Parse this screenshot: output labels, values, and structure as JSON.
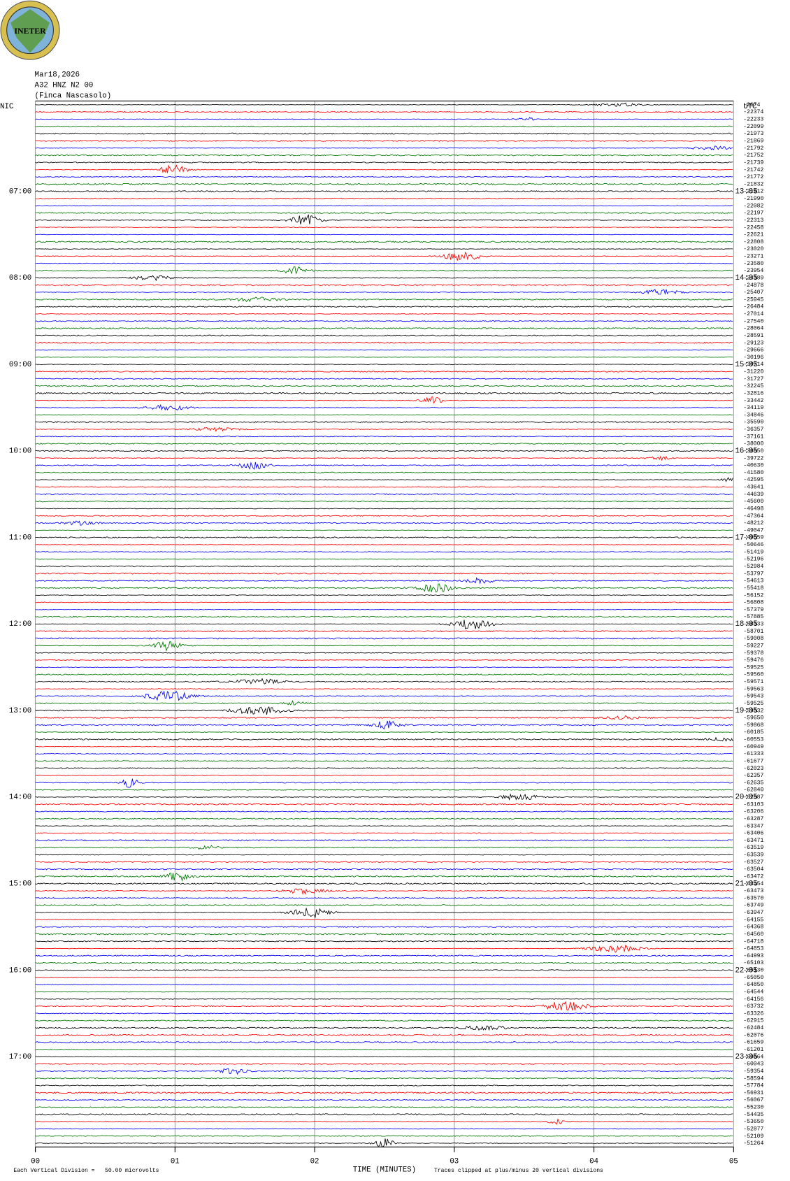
{
  "header": {
    "logo_text": "INETER",
    "date": "Mar18,2026",
    "station": "A32 HNZ N2 00",
    "location": "(Finca Nascasolo)"
  },
  "left_timezone": "NIC",
  "right_timezone": "UTC",
  "left_times": [
    "07:00",
    "08:00",
    "09:00",
    "10:00",
    "11:00",
    "12:00",
    "13:00",
    "14:00",
    "15:00",
    "16:00",
    "17:00"
  ],
  "right_times": [
    "13:05",
    "14:05",
    "15:05",
    "16:05",
    "17:05",
    "18:05",
    "19:05",
    "20:05",
    "21:05",
    "22:05",
    "23:05"
  ],
  "trace_offsets": [
    -2674,
    -22374,
    -22233,
    -22099,
    -21973,
    -21869,
    -21792,
    -21752,
    -21739,
    -21742,
    -21772,
    -21832,
    -21912,
    -21990,
    -22082,
    -22197,
    -22313,
    -22458,
    -22621,
    -22808,
    -23020,
    -23271,
    -23580,
    -23954,
    -24389,
    -24878,
    -25407,
    -25945,
    -26484,
    -27014,
    -27540,
    -28064,
    -28591,
    -29123,
    -29666,
    -30196,
    -30714,
    -31220,
    -31727,
    -32245,
    -32816,
    -33442,
    -34119,
    -34846,
    -35590,
    -36357,
    -37161,
    -38000,
    -38850,
    -39722,
    -40630,
    -41580,
    -42595,
    -43641,
    -44639,
    -45600,
    -46498,
    -47364,
    -48212,
    -49047,
    -49859,
    -50646,
    -51419,
    -52196,
    -52984,
    -53797,
    -54613,
    -55418,
    -56152,
    -56808,
    -57379,
    -57885,
    -58333,
    -58701,
    -59008,
    -59227,
    -59378,
    -59476,
    -59525,
    -59560,
    -59571,
    -59563,
    -59543,
    -59525,
    -59532,
    -59650,
    -59868,
    -60185,
    -60553,
    -60949,
    -61333,
    -61677,
    -62023,
    -62357,
    -62635,
    -62840,
    -62987,
    -63103,
    -63206,
    -63287,
    -63347,
    -63406,
    -63471,
    -63519,
    -63539,
    -63527,
    -63504,
    -63472,
    -63454,
    -63473,
    -63570,
    -63749,
    -63947,
    -64155,
    -64368,
    -64560,
    -64718,
    -64853,
    -64993,
    -65103,
    -65130,
    -65050,
    -64850,
    -64544,
    -64156,
    -63732,
    -63326,
    -62915,
    -62484,
    -62076,
    -61659,
    -61201,
    -60664,
    -60043,
    -59354,
    -58594,
    -57784,
    -56931,
    -56067,
    -55230,
    -54435,
    -53650,
    -52877,
    -52109,
    -51264
  ],
  "x_axis": {
    "title": "TIME (MINUTES)",
    "xlim": [
      0,
      5
    ],
    "xticks": [
      {
        "value": 0,
        "label": "00"
      },
      {
        "value": 1,
        "label": "01"
      },
      {
        "value": 2,
        "label": "02"
      },
      {
        "value": 3,
        "label": "03"
      },
      {
        "value": 4,
        "label": "04"
      },
      {
        "value": 5,
        "label": "05"
      }
    ]
  },
  "trace_colors": [
    "#000000",
    "#ff0000",
    "#0000ff",
    "#007700"
  ],
  "footer": {
    "scale_note": "Each Vertical Division =   50.00 microvolts",
    "clip_note": "Traces clipped at plus/minus 20 vertical divisions"
  }
}
